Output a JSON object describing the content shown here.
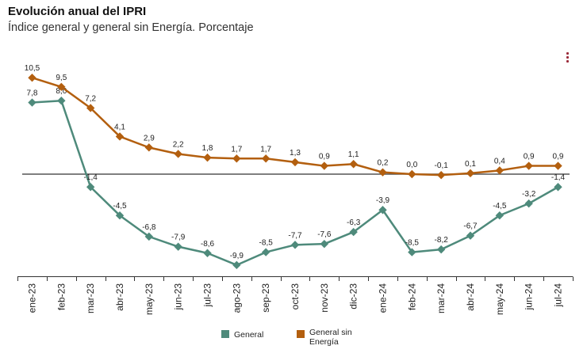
{
  "title": "Evolución anual del IPRI",
  "subtitle": "Índice general y general sin Energía. Porcentaje",
  "menu_icon": "more-vertical-icon",
  "chart_data": {
    "type": "line",
    "categories": [
      "ene-23",
      "feb-23",
      "mar-23",
      "abr-23",
      "may-23",
      "jun-23",
      "jul-23",
      "ago-23",
      "sep-23",
      "oct-23",
      "nov-23",
      "dic-23",
      "ene-24",
      "feb-24",
      "mar-24",
      "abr-24",
      "may-24",
      "jun-24",
      "jul-24"
    ],
    "series": [
      {
        "name": "General",
        "color": "#4e8a7b",
        "values": [
          7.8,
          8.0,
          -1.4,
          -4.5,
          -6.8,
          -7.9,
          -8.6,
          -9.9,
          -8.5,
          -7.7,
          -7.6,
          -6.3,
          -3.9,
          -8.5,
          -8.2,
          -6.7,
          -4.5,
          -3.2,
          -1.4
        ],
        "labels": [
          "7,8",
          "8,0",
          "-1,4",
          "-4,5",
          "-6,8",
          "-7,9",
          "-8,6",
          "-9,9",
          "-8,5",
          "-7,7",
          "-7,6",
          "-6,3",
          "-3,9",
          "-8,5",
          "-8,2",
          "-6,7",
          "-4,5",
          "-3,2",
          "-1,4"
        ]
      },
      {
        "name": "General sin Energía",
        "color": "#b35f0f",
        "values": [
          10.5,
          9.5,
          7.2,
          4.1,
          2.9,
          2.2,
          1.8,
          1.7,
          1.7,
          1.3,
          0.9,
          1.1,
          0.2,
          0.0,
          -0.1,
          0.1,
          0.4,
          0.9,
          0.9
        ],
        "labels": [
          "10,5",
          "9,5",
          "7,2",
          "4,1",
          "2,9",
          "2,2",
          "1,8",
          "1,7",
          "1,7",
          "1,3",
          "0,9",
          "1,1",
          "0,2",
          "0,0",
          "-0,1",
          "0,1",
          "0,4",
          "0,9",
          "0,9"
        ]
      }
    ],
    "xlabel": "",
    "ylabel": "",
    "ylim": [
      -11,
      12
    ],
    "grid": false,
    "zero_line": true,
    "legend_position": "bottom"
  },
  "legend": {
    "general": {
      "label": "General",
      "color": "#4e8a7b"
    },
    "sin_energia": {
      "label": "General sin Energía",
      "color": "#b35f0f"
    }
  }
}
